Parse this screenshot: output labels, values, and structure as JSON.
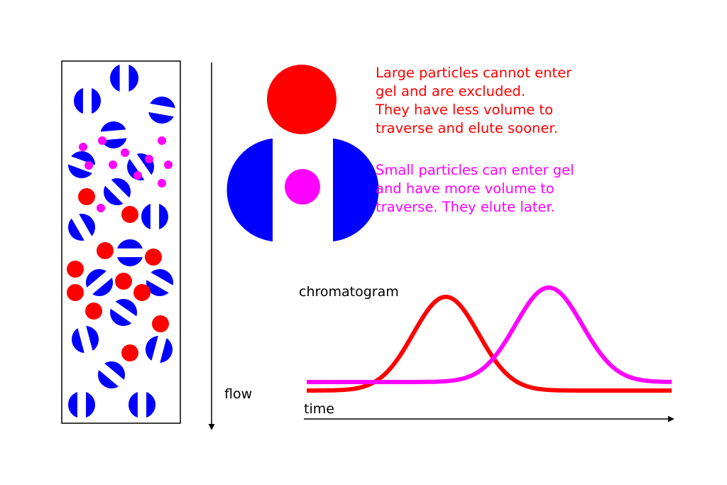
{
  "labels": {
    "flow": "flow",
    "chromatogram": "chromatogram",
    "time": "time"
  },
  "explanations": {
    "large": {
      "lines": [
        "Large particles cannot enter",
        "gel and are excluded.",
        "They have less volume to",
        "traverse and elute sooner."
      ],
      "color": "#ff0000"
    },
    "small": {
      "lines": [
        "Small particles can enter gel",
        "and have more volume to",
        "traverse.  They elute later."
      ],
      "color": "#ff00ff"
    }
  },
  "colors": {
    "gel_bead": "#0000ff",
    "large_particle": "#ff0000",
    "small_particle": "#ff00ff",
    "outline": "#000000"
  }
}
